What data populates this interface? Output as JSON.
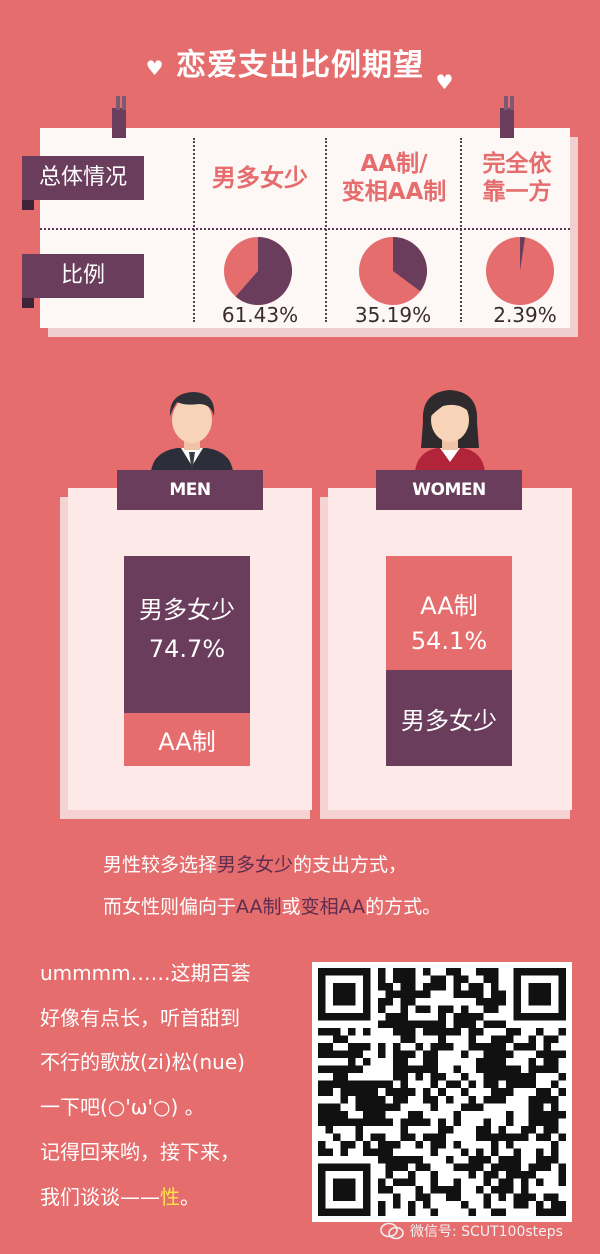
{
  "title": "恋爱支出比例期望",
  "table": {
    "row1_label": "总体情况",
    "row2_label": "比例",
    "columns": [
      {
        "name_line1": "男多女少",
        "name_line2": "",
        "percent_text": "61.43%",
        "percent": 61.43
      },
      {
        "name_line1": "AA制/",
        "name_line2": "变相AA制",
        "percent_text": "35.19%",
        "percent": 35.19
      },
      {
        "name_line1": "完全依",
        "name_line2": "靠一方",
        "percent_text": "2.39%",
        "percent": 2.39
      }
    ]
  },
  "men": {
    "label": "MEN",
    "top_name": "男多女少",
    "top_percent_text": "74.7%",
    "top_percent": 74.7,
    "bottom_name": "AA制"
  },
  "women": {
    "label": "WOMEN",
    "top_name": "AA制",
    "top_percent_text": "54.1%",
    "top_percent": 54.1,
    "bottom_name": "男多女少"
  },
  "caption": {
    "line1_a": "男性较多选择",
    "line1_hl": "男多女少",
    "line1_b": "的支出方式，",
    "line2_a": "而女性则偏向于",
    "line2_hl1": "AA制",
    "line2_b": "或",
    "line2_hl2": "变相AA",
    "line2_c": "的方式。"
  },
  "note": {
    "lines": [
      "ummmm……这期百荟",
      "好像有点长，听首甜到",
      "不行的歌放(zi)松(nue)",
      "一下吧(○'ω'○) 。",
      "记得回来哟，接下来，"
    ],
    "last_a": "我们谈谈——",
    "last_hl": "性",
    "last_b": "。"
  },
  "watermark": "微信号: SCUT100steps",
  "icons": [
    "heart-icon",
    "man-avatar-icon",
    "woman-avatar-icon",
    "wechat-icon"
  ],
  "colors": {
    "background": "#e56d6d",
    "plum": "#6b3d5c",
    "coral": "#e56d6d",
    "highlight_yellow": "#ffe34a"
  }
}
